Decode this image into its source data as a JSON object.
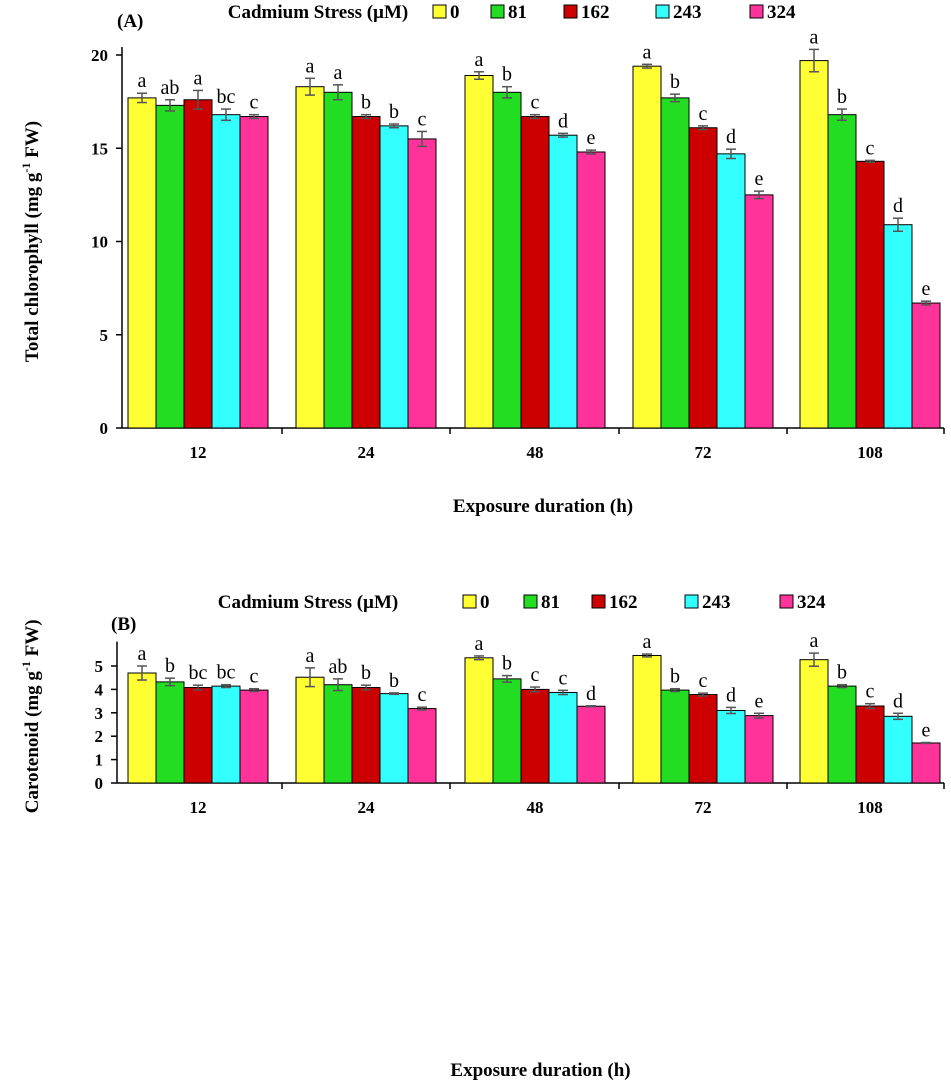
{
  "legend": {
    "title": "Cadmium Stress (µM)",
    "entries": [
      {
        "name": "0",
        "color": "#FFFF33"
      },
      {
        "name": "81",
        "color": "#22DD22"
      },
      {
        "name": "162",
        "color": "#CC0000"
      },
      {
        "name": "243",
        "color": "#33FFFF"
      },
      {
        "name": "324",
        "color": "#FF3399"
      }
    ]
  },
  "chart_data": [
    {
      "type": "bar",
      "panel_label": "(A)",
      "xlabel": "Exposure duration (h)",
      "ylabel_main": "Total chlorophyll (mg g",
      "ylabel_sup": "-1",
      "ylabel_end": " FW)",
      "categories": [
        "12",
        "24",
        "48",
        "72",
        "108"
      ],
      "ylim": [
        0,
        20
      ],
      "yticks": [
        0,
        5,
        10,
        15,
        20
      ],
      "series": [
        {
          "name": "0",
          "values": [
            17.7,
            18.3,
            18.9,
            19.4,
            19.7
          ],
          "errors": [
            0.25,
            0.45,
            0.2,
            0.1,
            0.6
          ],
          "letters": [
            "a",
            "a",
            "a",
            "a",
            "a"
          ]
        },
        {
          "name": "81",
          "values": [
            17.3,
            18.0,
            18.0,
            17.7,
            16.8
          ],
          "errors": [
            0.3,
            0.4,
            0.3,
            0.2,
            0.3
          ],
          "letters": [
            "ab",
            "a",
            "b",
            "b",
            "b"
          ]
        },
        {
          "name": "162",
          "values": [
            17.6,
            16.7,
            16.7,
            16.1,
            14.3
          ],
          "errors": [
            0.5,
            0.1,
            0.1,
            0.1,
            0.05
          ],
          "letters": [
            "a",
            "b",
            "c",
            "c",
            "c"
          ]
        },
        {
          "name": "243",
          "values": [
            16.8,
            16.2,
            15.7,
            14.7,
            10.9
          ],
          "errors": [
            0.3,
            0.1,
            0.1,
            0.25,
            0.35
          ],
          "letters": [
            "bc",
            "b",
            "d",
            "d",
            "d"
          ]
        },
        {
          "name": "324",
          "values": [
            16.7,
            15.5,
            14.8,
            12.5,
            6.7
          ],
          "errors": [
            0.1,
            0.4,
            0.1,
            0.2,
            0.1
          ],
          "letters": [
            "c",
            "c",
            "e",
            "e",
            "e"
          ]
        }
      ]
    },
    {
      "type": "bar",
      "panel_label": "(B)",
      "xlabel": "Exposure duration (h)",
      "ylabel_main": "Carotenoid (mg g",
      "ylabel_sup": "-1",
      "ylabel_end": " FW)",
      "categories": [
        "12",
        "24",
        "48",
        "72",
        "108"
      ],
      "ylim": [
        0,
        5.7
      ],
      "yticks": [
        0,
        1,
        2,
        3,
        4,
        5
      ],
      "series": [
        {
          "name": "0",
          "values": [
            4.7,
            4.52,
            5.35,
            5.45,
            5.27
          ],
          "errors": [
            0.3,
            0.4,
            0.08,
            0.06,
            0.28
          ],
          "letters": [
            "a",
            "a",
            "a",
            "a",
            "a"
          ]
        },
        {
          "name": "81",
          "values": [
            4.32,
            4.2,
            4.45,
            3.97,
            4.14
          ],
          "errors": [
            0.16,
            0.25,
            0.14,
            0.06,
            0.06
          ],
          "letters": [
            "b",
            "ab",
            "b",
            "b",
            "b"
          ]
        },
        {
          "name": "162",
          "values": [
            4.08,
            4.08,
            4.0,
            3.78,
            3.29
          ],
          "errors": [
            0.1,
            0.1,
            0.1,
            0.06,
            0.1
          ],
          "letters": [
            "bc",
            "b",
            "c",
            "c",
            "c"
          ]
        },
        {
          "name": "243",
          "values": [
            4.14,
            3.82,
            3.87,
            3.1,
            2.85
          ],
          "errors": [
            0.06,
            0.03,
            0.09,
            0.13,
            0.13
          ],
          "letters": [
            "bc",
            "b",
            "c",
            "d",
            "d"
          ]
        },
        {
          "name": "324",
          "values": [
            3.97,
            3.18,
            3.28,
            2.88,
            1.71
          ],
          "errors": [
            0.06,
            0.06,
            0.02,
            0.1,
            0.02
          ],
          "letters": [
            "c",
            "c",
            "d",
            "e",
            "e"
          ]
        }
      ]
    }
  ]
}
